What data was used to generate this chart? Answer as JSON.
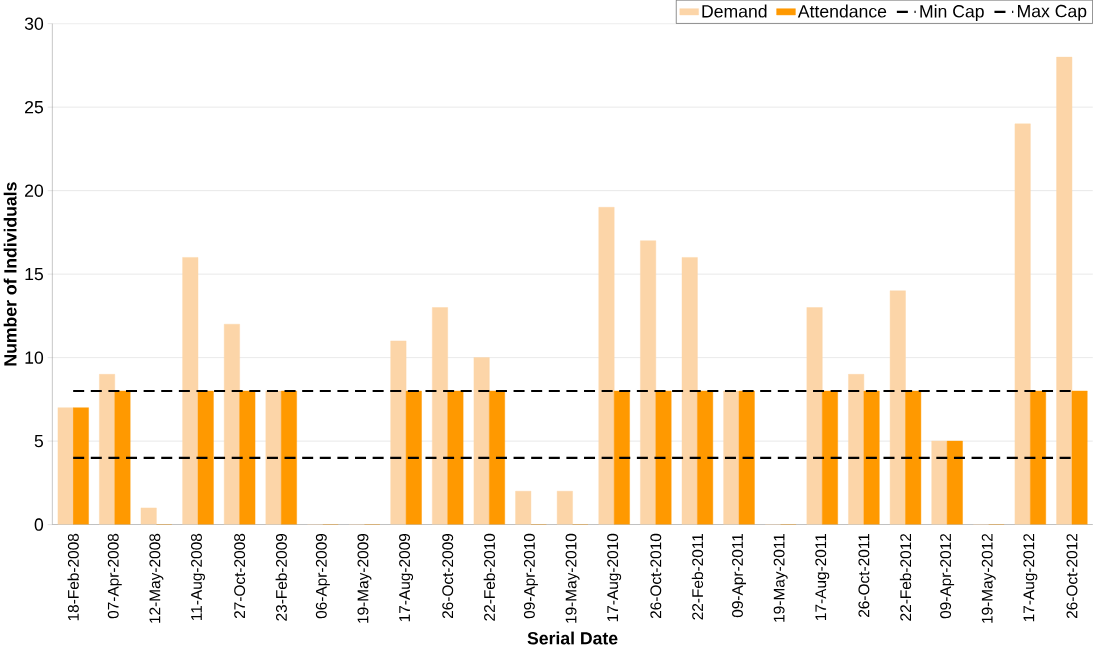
{
  "chart_data": {
    "type": "bar",
    "xlabel": "Serial Date",
    "ylabel": "Number of Individuals",
    "categories": [
      "18-Feb-2008",
      "07-Apr-2008",
      "12-May-2008",
      "11-Aug-2008",
      "27-Oct-2008",
      "23-Feb-2009",
      "06-Apr-2009",
      "19-May-2009",
      "17-Aug-2009",
      "26-Oct-2009",
      "22-Feb-2010",
      "09-Apr-2010",
      "19-May-2010",
      "17-Aug-2010",
      "26-Oct-2010",
      "22-Feb-2011",
      "09-Apr-2011",
      "19-May-2011",
      "17-Aug-2011",
      "26-Oct-2011",
      "22-Feb-2012",
      "09-Apr-2012",
      "19-May-2012",
      "17-Aug-2012",
      "26-Oct-2012"
    ],
    "series": [
      {
        "name": "Demand",
        "color": "#fcd5a8",
        "values": [
          7,
          9,
          1,
          16,
          12,
          8,
          0,
          0,
          11,
          13,
          10,
          2,
          2,
          19,
          17,
          16,
          8,
          0,
          13,
          9,
          14,
          5,
          0,
          24,
          28
        ]
      },
      {
        "name": "Attendance",
        "color": "#ff9900",
        "values": [
          7,
          8,
          0,
          8,
          8,
          8,
          0,
          0,
          8,
          8,
          8,
          0,
          0,
          8,
          8,
          8,
          8,
          0,
          8,
          8,
          8,
          5,
          0,
          8,
          8
        ]
      },
      {
        "name": "Min Cap",
        "type": "line",
        "color": "#000000",
        "line_style": "dashed",
        "values": [
          4,
          4,
          4,
          4,
          4,
          4,
          4,
          4,
          4,
          4,
          4,
          4,
          4,
          4,
          4,
          4,
          4,
          4,
          4,
          4,
          4,
          4,
          4,
          4,
          4
        ]
      },
      {
        "name": "Max Cap",
        "type": "line",
        "color": "#000000",
        "line_style": "dashed",
        "values": [
          8,
          8,
          8,
          8,
          8,
          8,
          8,
          8,
          8,
          8,
          8,
          8,
          8,
          8,
          8,
          8,
          8,
          8,
          8,
          8,
          8,
          8,
          8,
          8,
          8
        ]
      }
    ],
    "ylim": [
      0,
      30
    ],
    "yticks": [
      0,
      5,
      10,
      15,
      20,
      25,
      30
    ],
    "grid": "y",
    "legend": "top right"
  }
}
